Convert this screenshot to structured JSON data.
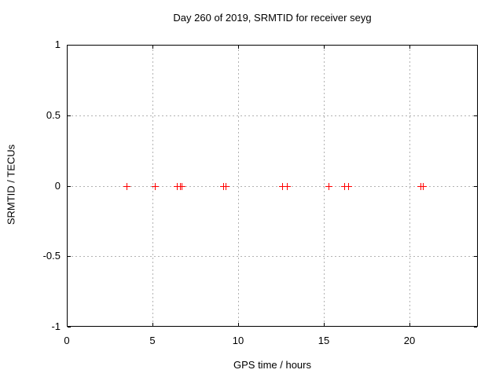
{
  "page": {
    "title": "Day 260 of 2019, SRMTID for receiver seyg"
  },
  "chart_data": {
    "type": "scatter",
    "title": "Day 260 of 2019, SRMTID for receiver seyg",
    "xlabel": "GPS time / hours",
    "ylabel": "SRMTID / TECUs",
    "xlim": [
      0,
      24
    ],
    "ylim": [
      -1,
      1
    ],
    "xticks": {
      "values": [
        0,
        5,
        10,
        15,
        20
      ],
      "labels": [
        "0",
        "5",
        "10",
        "15",
        "20"
      ]
    },
    "yticks": {
      "values": [
        1,
        0.5,
        0,
        -0.5,
        -1
      ],
      "labels": [
        "1",
        "0.5",
        "0",
        "-0.5",
        "-1"
      ]
    },
    "grid": true,
    "grid_style": "dashed",
    "legend": "none",
    "series": [
      {
        "name": "SRMTID",
        "marker": "plus",
        "color": "#ff0000",
        "x": [
          3.49,
          5.14,
          6.42,
          6.6,
          6.7,
          9.13,
          9.27,
          12.57,
          12.85,
          15.28,
          16.2,
          16.43,
          20.65,
          20.79
        ],
        "y": [
          0,
          0,
          0,
          0,
          0,
          0,
          0,
          0,
          0,
          0,
          0,
          0,
          0,
          0
        ]
      }
    ],
    "colors": {
      "marker": "#ff0000",
      "grid": "#b2b2b2",
      "axis": "#000000",
      "background": "#ffffff"
    }
  }
}
